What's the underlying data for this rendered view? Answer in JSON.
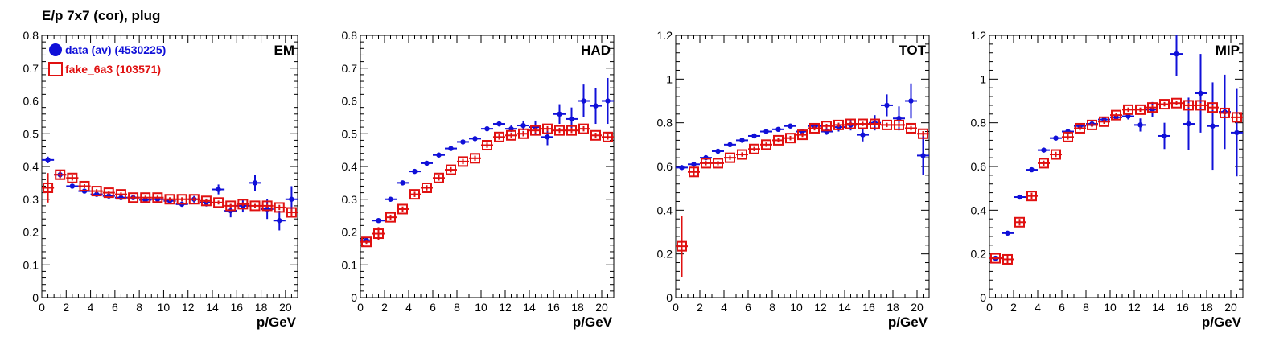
{
  "title": "E/p 7x7 (cor), plug",
  "colors": {
    "data": "#1010d8",
    "fake": "#e01010"
  },
  "legend": [
    {
      "label": "data (av) (4530225)",
      "marker": "filled-circle",
      "color": "#1010d8"
    },
    {
      "label": "fake_6a3 (103571)",
      "marker": "open-square",
      "color": "#e01010"
    }
  ],
  "chart_data": [
    {
      "type": "scatter",
      "panel_label": "EM",
      "xlabel": "p/GeV",
      "xlim": [
        0,
        21
      ],
      "ylim": [
        0,
        0.8
      ],
      "xticks": [
        0,
        2,
        4,
        6,
        8,
        10,
        12,
        14,
        16,
        18,
        20
      ],
      "yticks": [
        0,
        0.1,
        0.2,
        0.3,
        0.4,
        0.5,
        0.6,
        0.7,
        0.8
      ],
      "ytick_labels": [
        "0",
        "0.1",
        "0.2",
        "0.3",
        "0.4",
        "0.5",
        "0.6",
        "0.7",
        "0.8"
      ],
      "series": [
        {
          "name": "data (av) (4530225)",
          "marker": "filled-circle",
          "points": [
            [
              0.5,
              0.42,
              0.01
            ],
            [
              1.5,
              0.375,
              0.01
            ],
            [
              2.5,
              0.34,
              0.005
            ],
            [
              3.5,
              0.325,
              0.005
            ],
            [
              4.5,
              0.315,
              0.005
            ],
            [
              5.5,
              0.31,
              0.005
            ],
            [
              6.5,
              0.305,
              0.005
            ],
            [
              7.5,
              0.305,
              0.005
            ],
            [
              8.5,
              0.298,
              0.006
            ],
            [
              9.5,
              0.3,
              0.006
            ],
            [
              10.5,
              0.295,
              0.007
            ],
            [
              11.5,
              0.285,
              0.008
            ],
            [
              12.5,
              0.3,
              0.01
            ],
            [
              13.5,
              0.29,
              0.012
            ],
            [
              14.5,
              0.33,
              0.015
            ],
            [
              15.5,
              0.265,
              0.02
            ],
            [
              16.5,
              0.28,
              0.02
            ],
            [
              17.5,
              0.35,
              0.025
            ],
            [
              18.5,
              0.27,
              0.03
            ],
            [
              19.5,
              0.235,
              0.03
            ],
            [
              20.5,
              0.3,
              0.04
            ]
          ]
        },
        {
          "name": "fake_6a3 (103571)",
          "marker": "open-square",
          "points": [
            [
              0.5,
              0.335,
              0.045
            ],
            [
              1.5,
              0.375,
              0.01
            ],
            [
              2.5,
              0.365,
              0.008
            ],
            [
              3.5,
              0.34,
              0.006
            ],
            [
              4.5,
              0.325,
              0.006
            ],
            [
              5.5,
              0.32,
              0.006
            ],
            [
              6.5,
              0.315,
              0.006
            ],
            [
              7.5,
              0.305,
              0.006
            ],
            [
              8.5,
              0.305,
              0.006
            ],
            [
              9.5,
              0.305,
              0.006
            ],
            [
              10.5,
              0.3,
              0.006
            ],
            [
              11.5,
              0.3,
              0.006
            ],
            [
              12.5,
              0.3,
              0.006
            ],
            [
              13.5,
              0.295,
              0.006
            ],
            [
              14.5,
              0.29,
              0.006
            ],
            [
              15.5,
              0.28,
              0.006
            ],
            [
              16.5,
              0.285,
              0.006
            ],
            [
              17.5,
              0.28,
              0.006
            ],
            [
              18.5,
              0.28,
              0.006
            ],
            [
              19.5,
              0.275,
              0.008
            ],
            [
              20.5,
              0.26,
              0.01
            ]
          ]
        }
      ]
    },
    {
      "type": "scatter",
      "panel_label": "HAD",
      "xlabel": "p/GeV",
      "xlim": [
        0,
        21
      ],
      "ylim": [
        0,
        0.8
      ],
      "xticks": [
        0,
        2,
        4,
        6,
        8,
        10,
        12,
        14,
        16,
        18,
        20
      ],
      "yticks": [
        0,
        0.1,
        0.2,
        0.3,
        0.4,
        0.5,
        0.6,
        0.7,
        0.8
      ],
      "ytick_labels": [
        "0",
        "0.1",
        "0.2",
        "0.3",
        "0.4",
        "0.5",
        "0.6",
        "0.7",
        "0.8"
      ],
      "series": [
        {
          "name": "data (av) (4530225)",
          "marker": "filled-circle",
          "points": [
            [
              0.5,
              0.175,
              0.005
            ],
            [
              1.5,
              0.235,
              0.005
            ],
            [
              2.5,
              0.3,
              0.005
            ],
            [
              3.5,
              0.35,
              0.005
            ],
            [
              4.5,
              0.385,
              0.005
            ],
            [
              5.5,
              0.41,
              0.005
            ],
            [
              6.5,
              0.435,
              0.005
            ],
            [
              7.5,
              0.455,
              0.005
            ],
            [
              8.5,
              0.475,
              0.005
            ],
            [
              9.5,
              0.485,
              0.006
            ],
            [
              10.5,
              0.515,
              0.007
            ],
            [
              11.5,
              0.53,
              0.008
            ],
            [
              12.5,
              0.515,
              0.01
            ],
            [
              13.5,
              0.525,
              0.015
            ],
            [
              14.5,
              0.52,
              0.02
            ],
            [
              15.5,
              0.49,
              0.025
            ],
            [
              16.5,
              0.56,
              0.03
            ],
            [
              17.5,
              0.545,
              0.035
            ],
            [
              18.5,
              0.6,
              0.05
            ],
            [
              19.5,
              0.585,
              0.055
            ],
            [
              20.5,
              0.6,
              0.07
            ]
          ]
        },
        {
          "name": "fake_6a3 (103571)",
          "marker": "open-square",
          "points": [
            [
              0.5,
              0.17,
              0.006
            ],
            [
              1.5,
              0.195,
              0.02
            ],
            [
              2.5,
              0.245,
              0.008
            ],
            [
              3.5,
              0.27,
              0.008
            ],
            [
              4.5,
              0.315,
              0.008
            ],
            [
              5.5,
              0.335,
              0.008
            ],
            [
              6.5,
              0.365,
              0.008
            ],
            [
              7.5,
              0.39,
              0.008
            ],
            [
              8.5,
              0.415,
              0.008
            ],
            [
              9.5,
              0.425,
              0.008
            ],
            [
              10.5,
              0.465,
              0.008
            ],
            [
              11.5,
              0.49,
              0.008
            ],
            [
              12.5,
              0.495,
              0.008
            ],
            [
              13.5,
              0.5,
              0.008
            ],
            [
              14.5,
              0.51,
              0.008
            ],
            [
              15.5,
              0.515,
              0.008
            ],
            [
              16.5,
              0.51,
              0.008
            ],
            [
              17.5,
              0.51,
              0.008
            ],
            [
              18.5,
              0.515,
              0.008
            ],
            [
              19.5,
              0.495,
              0.008
            ],
            [
              20.5,
              0.49,
              0.008
            ]
          ]
        }
      ]
    },
    {
      "type": "scatter",
      "panel_label": "TOT",
      "xlabel": "p/GeV",
      "xlim": [
        0,
        21
      ],
      "ylim": [
        0,
        1.2
      ],
      "xticks": [
        0,
        2,
        4,
        6,
        8,
        10,
        12,
        14,
        16,
        18,
        20
      ],
      "yticks": [
        0,
        0.2,
        0.4,
        0.6,
        0.8,
        1.0,
        1.2
      ],
      "ytick_labels": [
        "0",
        "0.2",
        "0.4",
        "0.6",
        "0.8",
        "1",
        "1.2"
      ],
      "series": [
        {
          "name": "data (av) (4530225)",
          "marker": "filled-circle",
          "points": [
            [
              0.5,
              0.595,
              0.005
            ],
            [
              1.5,
              0.61,
              0.005
            ],
            [
              2.5,
              0.64,
              0.005
            ],
            [
              3.5,
              0.67,
              0.005
            ],
            [
              4.5,
              0.7,
              0.005
            ],
            [
              5.5,
              0.72,
              0.005
            ],
            [
              6.5,
              0.74,
              0.005
            ],
            [
              7.5,
              0.76,
              0.005
            ],
            [
              8.5,
              0.77,
              0.006
            ],
            [
              9.5,
              0.785,
              0.006
            ],
            [
              10.5,
              0.76,
              0.008
            ],
            [
              11.5,
              0.785,
              0.01
            ],
            [
              12.5,
              0.76,
              0.015
            ],
            [
              13.5,
              0.78,
              0.02
            ],
            [
              14.5,
              0.79,
              0.025
            ],
            [
              15.5,
              0.745,
              0.03
            ],
            [
              16.5,
              0.8,
              0.035
            ],
            [
              17.5,
              0.88,
              0.05
            ],
            [
              18.5,
              0.82,
              0.055
            ],
            [
              19.5,
              0.9,
              0.08
            ],
            [
              20.5,
              0.65,
              0.09
            ]
          ]
        },
        {
          "name": "fake_6a3 (103571)",
          "marker": "open-square",
          "points": [
            [
              0.5,
              0.235,
              0.14
            ],
            [
              1.5,
              0.575,
              0.02
            ],
            [
              2.5,
              0.615,
              0.01
            ],
            [
              3.5,
              0.615,
              0.01
            ],
            [
              4.5,
              0.64,
              0.01
            ],
            [
              5.5,
              0.655,
              0.01
            ],
            [
              6.5,
              0.68,
              0.01
            ],
            [
              7.5,
              0.7,
              0.01
            ],
            [
              8.5,
              0.72,
              0.01
            ],
            [
              9.5,
              0.73,
              0.01
            ],
            [
              10.5,
              0.745,
              0.01
            ],
            [
              11.5,
              0.775,
              0.01
            ],
            [
              12.5,
              0.785,
              0.01
            ],
            [
              13.5,
              0.79,
              0.01
            ],
            [
              14.5,
              0.795,
              0.01
            ],
            [
              15.5,
              0.795,
              0.01
            ],
            [
              16.5,
              0.795,
              0.01
            ],
            [
              17.5,
              0.79,
              0.01
            ],
            [
              18.5,
              0.79,
              0.01
            ],
            [
              19.5,
              0.775,
              0.01
            ],
            [
              20.5,
              0.75,
              0.012
            ]
          ]
        }
      ]
    },
    {
      "type": "scatter",
      "panel_label": "MIP",
      "xlabel": "p/GeV",
      "xlim": [
        0,
        21
      ],
      "ylim": [
        0,
        1.2
      ],
      "xticks": [
        0,
        2,
        4,
        6,
        8,
        10,
        12,
        14,
        16,
        18,
        20
      ],
      "yticks": [
        0,
        0.2,
        0.4,
        0.6,
        0.8,
        1.0,
        1.2
      ],
      "ytick_labels": [
        "0",
        "0.2",
        "0.4",
        "0.6",
        "0.8",
        "1",
        "1.2"
      ],
      "series": [
        {
          "name": "data (av) (4530225)",
          "marker": "filled-circle",
          "points": [
            [
              0.5,
              0.18,
              0.005
            ],
            [
              1.5,
              0.295,
              0.005
            ],
            [
              2.5,
              0.46,
              0.005
            ],
            [
              3.5,
              0.585,
              0.005
            ],
            [
              4.5,
              0.675,
              0.005
            ],
            [
              5.5,
              0.73,
              0.005
            ],
            [
              6.5,
              0.76,
              0.005
            ],
            [
              7.5,
              0.785,
              0.006
            ],
            [
              8.5,
              0.795,
              0.007
            ],
            [
              9.5,
              0.815,
              0.008
            ],
            [
              10.5,
              0.825,
              0.01
            ],
            [
              11.5,
              0.83,
              0.015
            ],
            [
              12.5,
              0.79,
              0.03
            ],
            [
              13.5,
              0.86,
              0.035
            ],
            [
              14.5,
              0.74,
              0.06
            ],
            [
              15.5,
              1.115,
              0.1
            ],
            [
              16.5,
              0.795,
              0.12
            ],
            [
              17.5,
              0.935,
              0.18
            ],
            [
              18.5,
              0.785,
              0.2
            ],
            [
              19.5,
              0.85,
              0.17
            ],
            [
              20.5,
              0.755,
              0.2
            ]
          ]
        },
        {
          "name": "fake_6a3 (103571)",
          "marker": "open-square",
          "points": [
            [
              0.5,
              0.18,
              0.005
            ],
            [
              1.5,
              0.175,
              0.02
            ],
            [
              2.5,
              0.345,
              0.015
            ],
            [
              3.5,
              0.465,
              0.015
            ],
            [
              4.5,
              0.615,
              0.012
            ],
            [
              5.5,
              0.655,
              0.012
            ],
            [
              6.5,
              0.735,
              0.012
            ],
            [
              7.5,
              0.775,
              0.01
            ],
            [
              8.5,
              0.79,
              0.01
            ],
            [
              9.5,
              0.805,
              0.01
            ],
            [
              10.5,
              0.835,
              0.01
            ],
            [
              11.5,
              0.86,
              0.01
            ],
            [
              12.5,
              0.86,
              0.01
            ],
            [
              13.5,
              0.87,
              0.01
            ],
            [
              14.5,
              0.885,
              0.01
            ],
            [
              15.5,
              0.89,
              0.01
            ],
            [
              16.5,
              0.88,
              0.01
            ],
            [
              17.5,
              0.88,
              0.01
            ],
            [
              18.5,
              0.87,
              0.012
            ],
            [
              19.5,
              0.845,
              0.012
            ],
            [
              20.5,
              0.825,
              0.015
            ]
          ]
        }
      ]
    }
  ]
}
